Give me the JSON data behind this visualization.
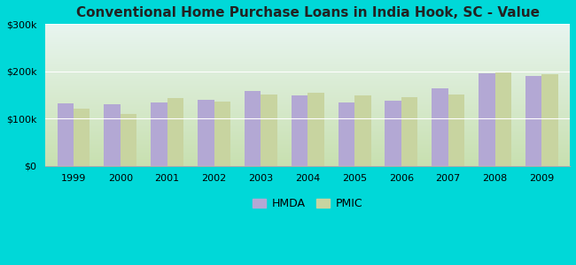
{
  "title": "Conventional Home Purchase Loans in India Hook, SC - Value",
  "years": [
    1999,
    2000,
    2001,
    2002,
    2003,
    2004,
    2005,
    2006,
    2007,
    2008,
    2009
  ],
  "hmda": [
    132000,
    130000,
    133000,
    140000,
    158000,
    148000,
    133000,
    137000,
    163000,
    196000,
    191000
  ],
  "pmic": [
    120000,
    110000,
    143000,
    135000,
    150000,
    155000,
    148000,
    145000,
    150000,
    198000,
    193000
  ],
  "hmda_color": "#b3a8d4",
  "pmic_color": "#c8d4a0",
  "background_outer": "#00d8d8",
  "gradient_top": "#e8f5f0",
  "gradient_bottom": "#c8e0b0",
  "ylim": [
    0,
    300000
  ],
  "yticks": [
    0,
    100000,
    200000,
    300000
  ],
  "ytick_labels": [
    "$0",
    "$100k",
    "$200k",
    "$300k"
  ],
  "legend_labels": [
    "HMDA",
    "PMIC"
  ],
  "bar_width": 0.35
}
